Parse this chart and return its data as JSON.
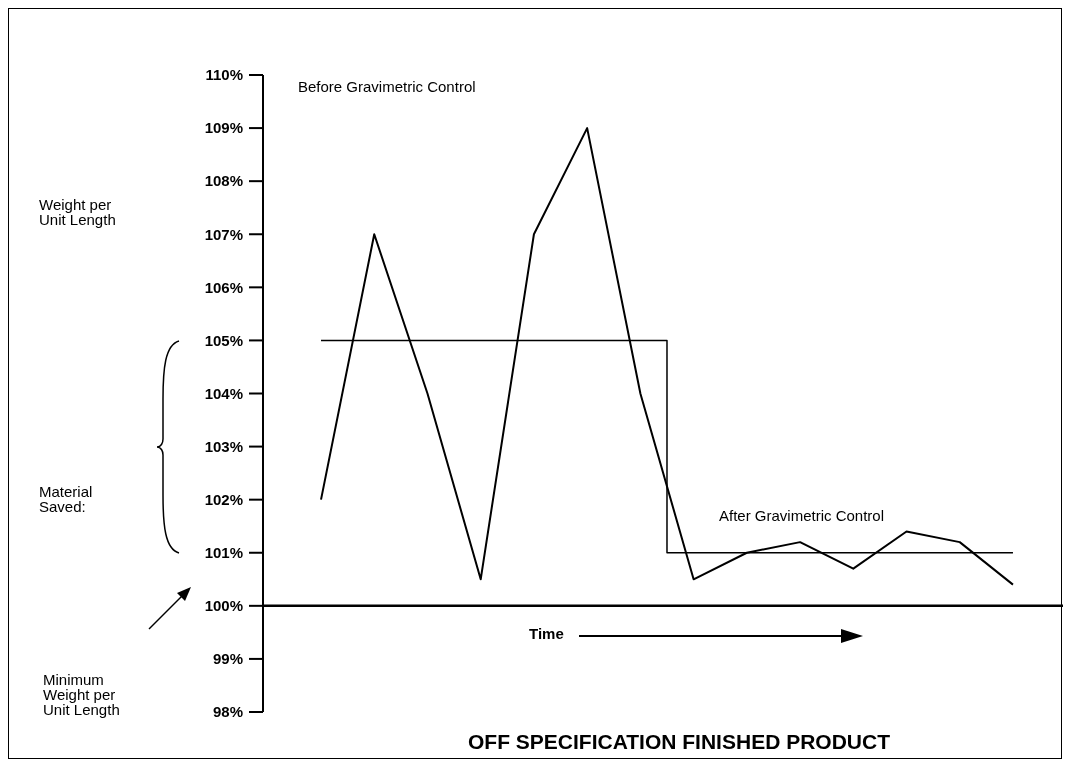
{
  "chart_data": {
    "type": "line",
    "title": "OFF SPECIFICATION FINISHED PRODUCT",
    "xlabel": "Time",
    "annotations": [
      "Weight per Unit Length",
      "Before Gravimetric Control",
      "After Gravimetric Control",
      "Material Saved:",
      "Minimum Weight per Unit Length"
    ],
    "categories": [
      null,
      null,
      null,
      null,
      null,
      null,
      null,
      null,
      null,
      null,
      null,
      null,
      null,
      null
    ],
    "series": [
      {
        "color": "#000000",
        "values": [
          102,
          107,
          104,
          100.5,
          107,
          109,
          104,
          100.5,
          101,
          101.2,
          100.7,
          101.4,
          101.2,
          100.4
        ]
      },
      {
        "type": "step",
        "color": "#000000",
        "values": [
          105,
          105,
          105,
          105,
          105,
          105,
          105,
          101,
          101,
          101,
          101,
          101,
          101,
          101
        ]
      }
    ],
    "ylim": [
      98,
      110
    ],
    "yticks": [
      {
        "value": 98,
        "label": "98%"
      },
      {
        "value": 99,
        "label": "99%"
      },
      {
        "value": 100,
        "label": "100%"
      },
      {
        "value": 101,
        "label": "101%"
      },
      {
        "value": 102,
        "label": "102%"
      },
      {
        "value": 103,
        "label": "103%"
      },
      {
        "value": 104,
        "label": "104%"
      },
      {
        "value": 105,
        "label": "105%"
      },
      {
        "value": 106,
        "label": "106%"
      },
      {
        "value": 107,
        "label": "107%"
      },
      {
        "value": 108,
        "label": "108%"
      },
      {
        "value": 109,
        "label": "109%"
      },
      {
        "value": 110,
        "label": "110%"
      }
    ],
    "ref_lines": [
      {
        "axis": "y",
        "value": 100,
        "color": "#000000"
      }
    ],
    "tick_labels": "y",
    "grid": false,
    "legend": false,
    "marker": "none",
    "line_style": "solid"
  }
}
